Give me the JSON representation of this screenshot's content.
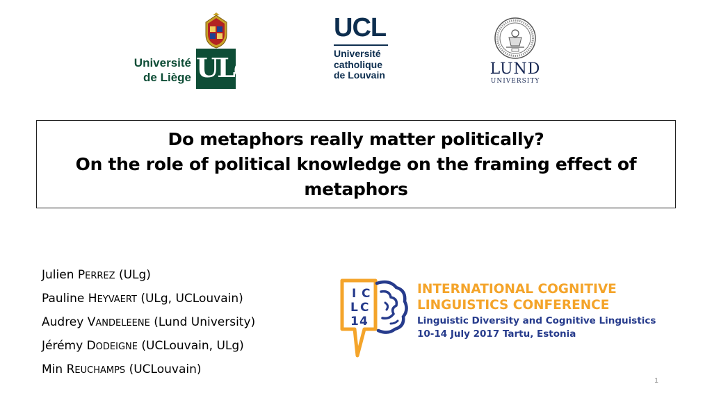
{
  "logos": {
    "ulg": {
      "text_line1": "Université",
      "text_line2": "de Liège",
      "letters": "ULg"
    },
    "ucl": {
      "big": "UCL",
      "line1": "Université",
      "line2": "catholique",
      "line3": "de Louvain"
    },
    "lund": {
      "name": "LUND",
      "sub": "UNIVERSITY"
    }
  },
  "title": {
    "line1": "Do metaphors really matter politically?",
    "line2": "On the role of political knowledge on the framing effect of",
    "line3": "metaphors"
  },
  "authors": [
    {
      "first": "Julien ",
      "initial": "P",
      "rest": "errez",
      "affil": " (ULg)"
    },
    {
      "first": "Pauline ",
      "initial": "H",
      "rest": "eyvaert",
      "affil": " (ULg, UCLouvain)"
    },
    {
      "first": "Audrey ",
      "initial": "V",
      "rest": "andeleene",
      "affil": " (Lund University)"
    },
    {
      "first": "Jérémy ",
      "initial": "D",
      "rest": "odeigne",
      "affil": " (UCLouvain, ULg)"
    },
    {
      "first": "Min ",
      "initial": "R",
      "rest": "euchamps",
      "affil": " (UCLouvain)"
    }
  ],
  "conference": {
    "logo_letters": [
      "I",
      "C",
      "L",
      "C",
      "1",
      "4"
    ],
    "title_line1": "INTERNATIONAL COGNITIVE",
    "title_line2": "LINGUISTICS CONFERENCE",
    "subtitle": "Linguistic Diversity and Cognitive Linguistics",
    "dates": "10-14 July 2017 Tartu, Estonia",
    "colors": {
      "orange": "#f4a42a",
      "blue": "#263b8c"
    }
  },
  "page_number": "1"
}
